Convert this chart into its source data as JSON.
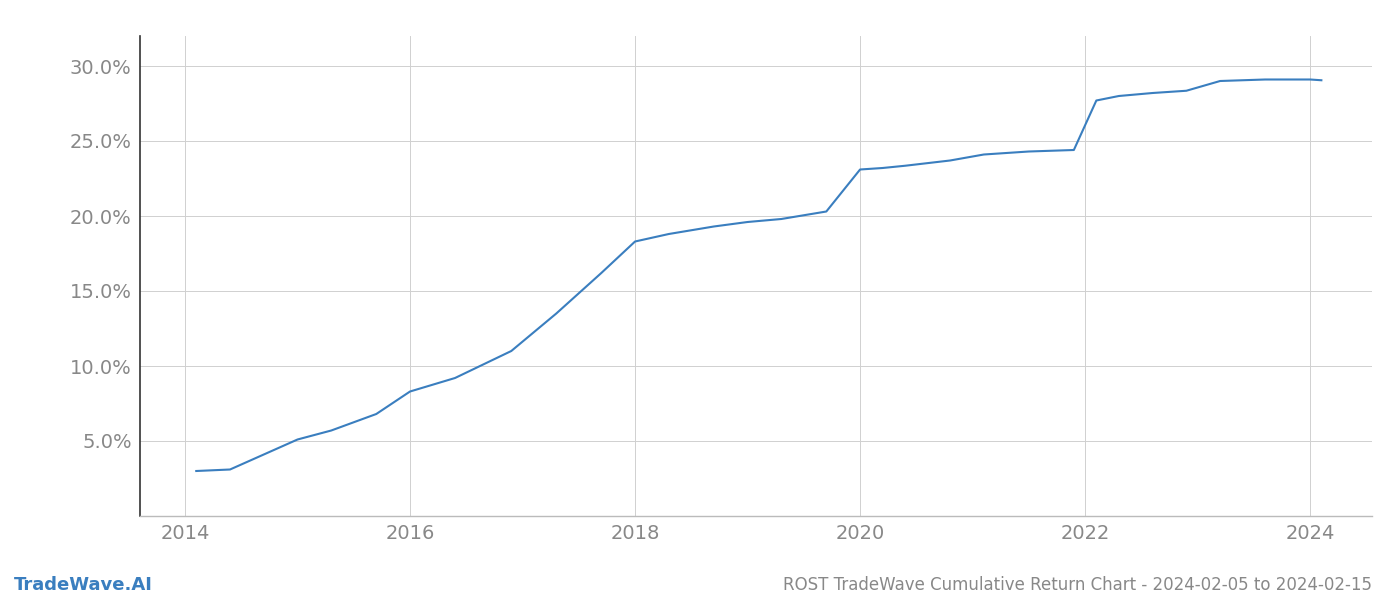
{
  "title": "ROST TradeWave Cumulative Return Chart - 2024-02-05 to 2024-02-15",
  "watermark": "TradeWave.AI",
  "line_color": "#3a7ebf",
  "line_width": 1.5,
  "background_color": "#ffffff",
  "grid_color": "#d0d0d0",
  "x_years": [
    2014.1,
    2014.4,
    2015.0,
    2015.3,
    2015.7,
    2016.0,
    2016.4,
    2016.9,
    2017.3,
    2017.7,
    2018.0,
    2018.3,
    2018.7,
    2019.0,
    2019.3,
    2019.7,
    2020.0,
    2020.2,
    2020.4,
    2020.8,
    2021.1,
    2021.5,
    2021.9,
    2022.1,
    2022.3,
    2022.6,
    2022.9,
    2023.2,
    2023.6,
    2024.0,
    2024.1
  ],
  "y_values": [
    3.0,
    3.1,
    5.1,
    5.7,
    6.8,
    8.3,
    9.2,
    11.0,
    13.5,
    16.2,
    18.3,
    18.8,
    19.3,
    19.6,
    19.8,
    20.3,
    23.1,
    23.2,
    23.35,
    23.7,
    24.1,
    24.3,
    24.4,
    27.7,
    28.0,
    28.2,
    28.35,
    29.0,
    29.1,
    29.1,
    29.05
  ],
  "xlim": [
    2013.6,
    2024.55
  ],
  "ylim": [
    0,
    32
  ],
  "yticks": [
    5.0,
    10.0,
    15.0,
    20.0,
    25.0,
    30.0
  ],
  "xticks": [
    2014,
    2016,
    2018,
    2020,
    2022,
    2024
  ],
  "tick_label_fontsize": 14,
  "title_fontsize": 12,
  "watermark_fontsize": 13,
  "tick_color": "#888888",
  "spine_color": "#bbbbbb",
  "left_spine_color": "#333333"
}
